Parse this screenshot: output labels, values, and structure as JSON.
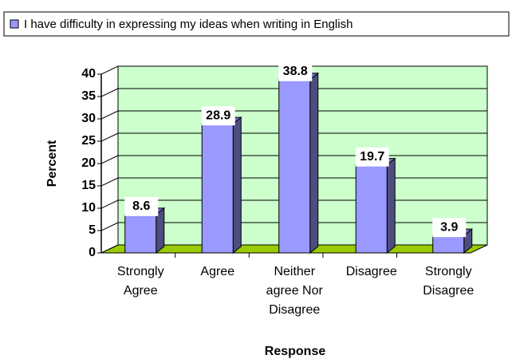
{
  "chart_data": {
    "type": "bar",
    "legend_label": "I have difficulty in expressing my ideas when writing in English",
    "y_label": "Percent",
    "x_label": "Response",
    "categories": [
      [
        "Strongly",
        "Agree"
      ],
      [
        "Agree"
      ],
      [
        "Neither",
        "agree Nor",
        "Disagree"
      ],
      [
        "Disagree"
      ],
      [
        "Strongly",
        "Disagree"
      ]
    ],
    "values": [
      8.6,
      28.9,
      38.8,
      19.7,
      3.9
    ],
    "color": "#9999ff",
    "ylim": [
      0,
      40
    ],
    "yticks": [
      0,
      5,
      10,
      15,
      20,
      25,
      30,
      35,
      40
    ],
    "grid": true
  }
}
